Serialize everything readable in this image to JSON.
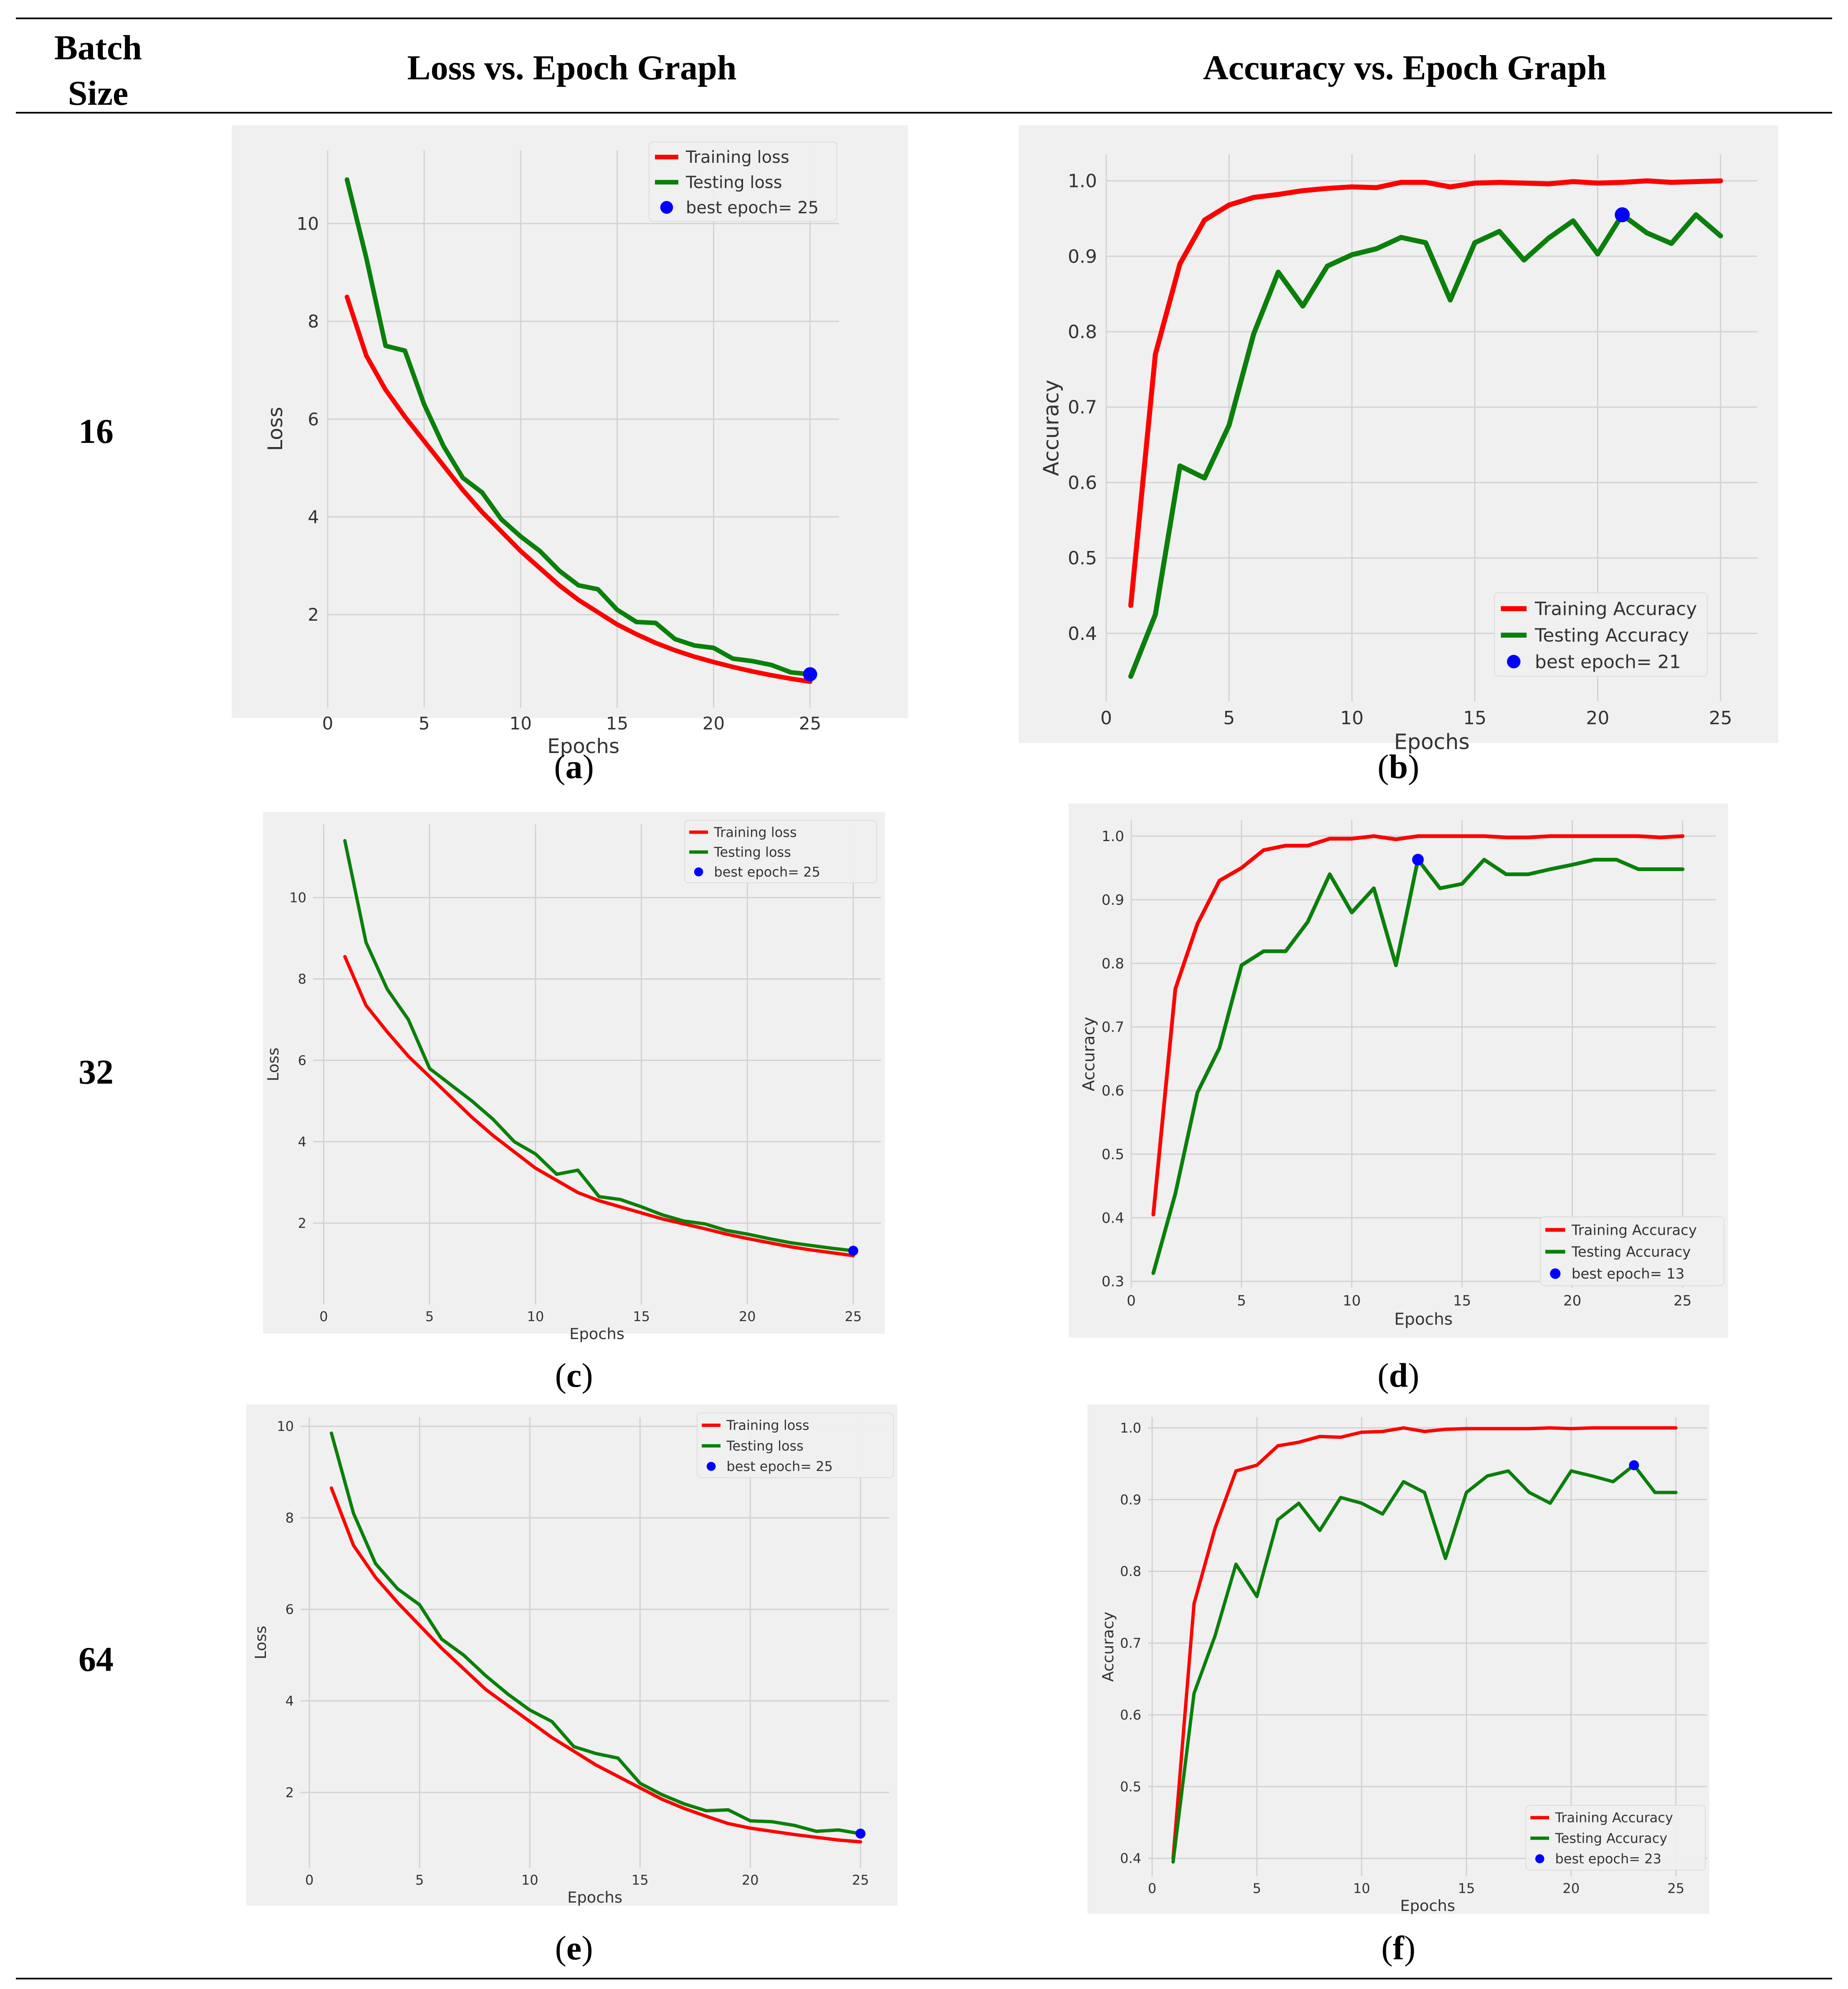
{
  "table": {
    "col_batch": "Batch\nSize",
    "col_loss": "Loss vs. Epoch Graph",
    "col_acc": "Accuracy vs. Epoch Graph",
    "rows": [
      {
        "batch": "16",
        "cap_loss": "a",
        "cap_acc": "b"
      },
      {
        "batch": "32",
        "cap_loss": "c",
        "cap_acc": "d"
      },
      {
        "batch": "64",
        "cap_loss": "e",
        "cap_acc": "f"
      }
    ]
  },
  "colors": {
    "training": "#ff0000",
    "testing": "#0a800a",
    "best": "#0000ff",
    "bg": "#f0f0f0",
    "grid": "#d2d2d2"
  },
  "chart_data": [
    {
      "id": "a",
      "type": "line",
      "xlabel": "Epochs",
      "ylabel": "Loss",
      "xlim": [
        0,
        26.5
      ],
      "ylim": [
        0.1,
        11.5
      ],
      "xticks": [
        0,
        5,
        10,
        15,
        20,
        25
      ],
      "yticks": [
        2,
        4,
        6,
        8,
        10
      ],
      "x": [
        1,
        2,
        3,
        4,
        5,
        6,
        7,
        8,
        9,
        10,
        11,
        12,
        13,
        14,
        15,
        16,
        17,
        18,
        19,
        20,
        21,
        22,
        23,
        24,
        25
      ],
      "series": [
        {
          "name": "Training loss",
          "values": [
            8.5,
            7.3,
            6.6,
            6.05,
            5.55,
            5.05,
            4.55,
            4.1,
            3.7,
            3.3,
            2.95,
            2.6,
            2.3,
            2.05,
            1.8,
            1.6,
            1.42,
            1.27,
            1.14,
            1.03,
            0.93,
            0.84,
            0.76,
            0.69,
            0.63
          ]
        },
        {
          "name": "Testing loss",
          "values": [
            10.9,
            9.3,
            7.5,
            7.4,
            6.3,
            5.45,
            4.8,
            4.5,
            3.95,
            3.6,
            3.3,
            2.9,
            2.6,
            2.52,
            2.1,
            1.85,
            1.83,
            1.5,
            1.37,
            1.32,
            1.1,
            1.05,
            0.97,
            0.82,
            0.78
          ]
        }
      ],
      "best": {
        "label": "best epoch= 25",
        "x": 25,
        "y": 0.78
      },
      "legend": "top-right"
    },
    {
      "id": "b",
      "type": "line",
      "xlabel": "Epochs",
      "ylabel": "Accuracy",
      "xlim": [
        0,
        26.5
      ],
      "ylim": [
        0.31,
        1.035
      ],
      "xticks": [
        0,
        5,
        10,
        15,
        20,
        25
      ],
      "yticks": [
        0.4,
        0.5,
        0.6,
        0.7,
        0.8,
        0.9,
        1.0
      ],
      "x": [
        1,
        2,
        3,
        4,
        5,
        6,
        7,
        8,
        9,
        10,
        11,
        12,
        13,
        14,
        15,
        16,
        17,
        18,
        19,
        20,
        21,
        22,
        23,
        24,
        25
      ],
      "series": [
        {
          "name": "Training Accuracy",
          "values": [
            0.437,
            0.77,
            0.89,
            0.948,
            0.968,
            0.978,
            0.982,
            0.987,
            0.99,
            0.992,
            0.991,
            0.998,
            0.998,
            0.992,
            0.997,
            0.998,
            0.997,
            0.996,
            0.999,
            0.997,
            0.998,
            1.0,
            0.998,
            0.999,
            1.0
          ]
        },
        {
          "name": "Testing Accuracy",
          "values": [
            0.343,
            0.425,
            0.622,
            0.606,
            0.676,
            0.797,
            0.879,
            0.834,
            0.887,
            0.902,
            0.91,
            0.925,
            0.918,
            0.842,
            0.918,
            0.933,
            0.895,
            0.924,
            0.947,
            0.903,
            0.955,
            0.931,
            0.917,
            0.955,
            0.927
          ]
        }
      ],
      "best": {
        "label": "best epoch= 21",
        "x": 21,
        "y": 0.955
      },
      "legend": "bottom-right"
    },
    {
      "id": "c",
      "type": "line",
      "xlabel": "Epochs",
      "ylabel": "Loss",
      "xlim": [
        -0.5,
        26.3
      ],
      "ylim": [
        0,
        11.8
      ],
      "xticks": [
        0,
        5,
        10,
        15,
        20,
        25
      ],
      "yticks": [
        2,
        4,
        6,
        8,
        10
      ],
      "x": [
        1,
        2,
        3,
        4,
        5,
        6,
        7,
        8,
        9,
        10,
        11,
        12,
        13,
        14,
        15,
        16,
        17,
        18,
        19,
        20,
        21,
        22,
        23,
        24,
        25
      ],
      "series": [
        {
          "name": "Training loss",
          "values": [
            8.55,
            7.35,
            6.7,
            6.1,
            5.6,
            5.1,
            4.6,
            4.15,
            3.75,
            3.35,
            3.05,
            2.75,
            2.55,
            2.4,
            2.25,
            2.1,
            1.98,
            1.86,
            1.73,
            1.62,
            1.52,
            1.42,
            1.34,
            1.27,
            1.2
          ]
        },
        {
          "name": "Testing loss",
          "values": [
            11.4,
            8.9,
            7.75,
            7.0,
            5.8,
            5.4,
            5.0,
            4.55,
            4.0,
            3.7,
            3.2,
            3.3,
            2.65,
            2.58,
            2.4,
            2.2,
            2.05,
            1.98,
            1.82,
            1.73,
            1.62,
            1.52,
            1.45,
            1.38,
            1.32
          ]
        }
      ],
      "best": {
        "label": "best epoch= 25",
        "x": 25,
        "y": 1.32
      },
      "legend": "top-right"
    },
    {
      "id": "d",
      "type": "line",
      "xlabel": "Epochs",
      "ylabel": "Accuracy",
      "xlim": [
        0,
        26.5
      ],
      "ylim": [
        0.29,
        1.025
      ],
      "xticks": [
        0,
        5,
        10,
        15,
        20,
        25
      ],
      "yticks": [
        0.3,
        0.4,
        0.5,
        0.6,
        0.7,
        0.8,
        0.9,
        1.0
      ],
      "x": [
        1,
        2,
        3,
        4,
        5,
        6,
        7,
        8,
        9,
        10,
        11,
        12,
        13,
        14,
        15,
        16,
        17,
        18,
        19,
        20,
        21,
        22,
        23,
        24,
        25
      ],
      "series": [
        {
          "name": "Training Accuracy",
          "values": [
            0.405,
            0.76,
            0.862,
            0.93,
            0.95,
            0.978,
            0.985,
            0.985,
            0.996,
            0.996,
            1.0,
            0.995,
            1.0,
            1.0,
            1.0,
            1.0,
            0.998,
            0.998,
            1.0,
            1.0,
            1.0,
            1.0,
            1.0,
            0.998,
            1.0
          ]
        },
        {
          "name": "Testing Accuracy",
          "values": [
            0.313,
            0.438,
            0.597,
            0.667,
            0.797,
            0.819,
            0.819,
            0.865,
            0.94,
            0.88,
            0.918,
            0.797,
            0.963,
            0.918,
            0.925,
            0.963,
            0.94,
            0.94,
            0.948,
            0.955,
            0.963,
            0.963,
            0.948,
            0.948,
            0.948
          ]
        }
      ],
      "best": {
        "label": "best epoch= 13",
        "x": 13,
        "y": 0.963
      },
      "legend": "bottom-right"
    },
    {
      "id": "e",
      "type": "line",
      "xlabel": "Epochs",
      "ylabel": "Loss",
      "xlim": [
        -0.4,
        26.3
      ],
      "ylim": [
        0.35,
        10.2
      ],
      "xticks": [
        0,
        5,
        10,
        15,
        20,
        25
      ],
      "yticks": [
        2,
        4,
        6,
        8,
        10
      ],
      "x": [
        1,
        2,
        3,
        4,
        5,
        6,
        7,
        8,
        9,
        10,
        11,
        12,
        13,
        14,
        15,
        16,
        17,
        18,
        19,
        20,
        21,
        22,
        23,
        24,
        25
      ],
      "series": [
        {
          "name": "Training loss",
          "values": [
            8.65,
            7.4,
            6.7,
            6.15,
            5.65,
            5.15,
            4.7,
            4.25,
            3.9,
            3.55,
            3.2,
            2.9,
            2.6,
            2.35,
            2.1,
            1.85,
            1.65,
            1.48,
            1.32,
            1.22,
            1.15,
            1.08,
            1.02,
            0.96,
            0.92
          ]
        },
        {
          "name": "Testing loss",
          "values": [
            9.85,
            8.1,
            7.0,
            6.45,
            6.1,
            5.35,
            5.0,
            4.55,
            4.15,
            3.8,
            3.55,
            3.0,
            2.85,
            2.75,
            2.2,
            1.95,
            1.75,
            1.6,
            1.62,
            1.38,
            1.36,
            1.28,
            1.15,
            1.18,
            1.1
          ]
        }
      ],
      "best": {
        "label": "best epoch= 25",
        "x": 25,
        "y": 1.1
      },
      "legend": "top-right"
    },
    {
      "id": "f",
      "type": "line",
      "xlabel": "Epochs",
      "ylabel": "Accuracy",
      "xlim": [
        -0.2,
        26.5
      ],
      "ylim": [
        0.375,
        1.015
      ],
      "xticks": [
        0,
        5,
        10,
        15,
        20,
        25
      ],
      "yticks": [
        0.4,
        0.5,
        0.6,
        0.7,
        0.8,
        0.9,
        1.0
      ],
      "x": [
        1,
        2,
        3,
        4,
        5,
        6,
        7,
        8,
        9,
        10,
        11,
        12,
        13,
        14,
        15,
        16,
        17,
        18,
        19,
        20,
        21,
        22,
        23,
        24,
        25
      ],
      "series": [
        {
          "name": "Training Accuracy",
          "values": [
            0.4,
            0.755,
            0.86,
            0.94,
            0.948,
            0.975,
            0.98,
            0.988,
            0.987,
            0.994,
            0.995,
            1.0,
            0.995,
            0.998,
            0.999,
            0.999,
            0.999,
            0.999,
            1.0,
            0.999,
            1.0,
            1.0,
            1.0,
            1.0,
            1.0
          ]
        },
        {
          "name": "Testing Accuracy",
          "values": [
            0.395,
            0.63,
            0.71,
            0.81,
            0.765,
            0.872,
            0.895,
            0.857,
            0.903,
            0.895,
            0.88,
            0.925,
            0.91,
            0.818,
            0.91,
            0.933,
            0.94,
            0.91,
            0.895,
            0.94,
            0.933,
            0.925,
            0.948,
            0.91,
            0.91
          ]
        }
      ],
      "best": {
        "label": "best epoch= 23",
        "x": 23,
        "y": 0.948
      },
      "legend": "bottom-right"
    }
  ]
}
